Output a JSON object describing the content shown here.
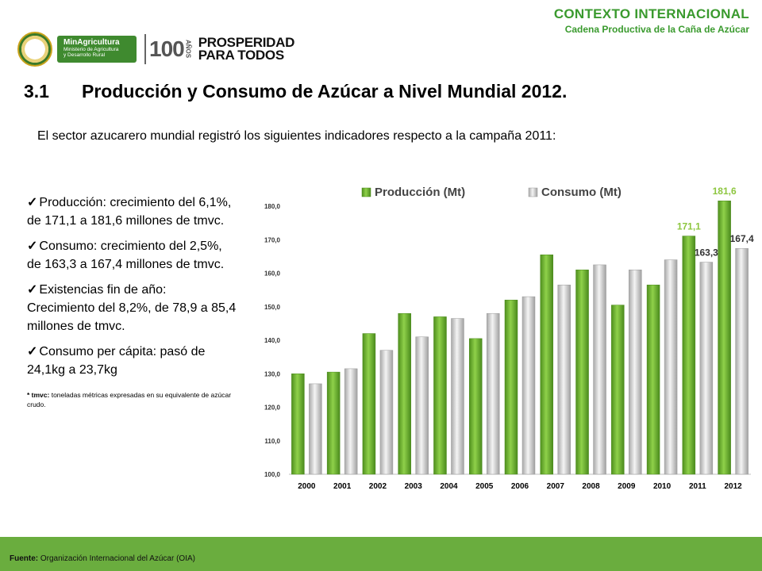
{
  "header": {
    "title": "CONTEXTO INTERNACIONAL",
    "subtitle": "Cadena Productiva de la Caña de Azúcar"
  },
  "logos": {
    "minagri_line1": "MinAgricultura",
    "minagri_line2": "Ministerio de Agricultura",
    "minagri_line3": "y Desarrollo Rural",
    "cien_number": "100",
    "cien_word": "AÑOS",
    "prosperidad_line1": "PROSPERIDAD",
    "prosperidad_line2": "PARA TODOS"
  },
  "section": {
    "number": "3.1",
    "title": "Producción y Consumo de Azúcar a Nivel Mundial 2012."
  },
  "intro": "El sector azucarero mundial registró los siguientes indicadores respecto a la campaña 2011:",
  "bullets": [
    "Producción: crecimiento del 6,1%, de 171,1 a 181,6 millones de tmvc.",
    "Consumo: crecimiento del 2,5%, de 163,3 a 167,4 millones de tmvc.",
    "Existencias fin de año: Crecimiento del 8,2%, de 78,9 a 85,4 millones de tmvc.",
    "Consumo per cápita: pasó de 24,1kg a 23,7kg"
  ],
  "check_glyph": "✓",
  "footnote": {
    "term": "* tmvc:",
    "text": " toneladas métricas expresadas en su equivalente de azúcar crudo."
  },
  "footer": {
    "label": "Fuente:",
    "text": " Organización Internacional del Azúcar (OIA)"
  },
  "colors": {
    "accent_green": "#3a9a2e",
    "footer_green": "#6aad3e",
    "production_bar": "#6fb432",
    "consumption_bar": "#d8d8d8",
    "highlight_label": "#8dc63f"
  },
  "chart_data": {
    "type": "bar",
    "categories": [
      "2000",
      "2001",
      "2002",
      "2003",
      "2004",
      "2005",
      "2006",
      "2007",
      "2008",
      "2009",
      "2010",
      "2011",
      "2012"
    ],
    "series": [
      {
        "name": "Producción (Mt)",
        "values": [
          130.0,
          130.5,
          142.0,
          148.0,
          147.0,
          140.5,
          152.0,
          165.5,
          161.0,
          150.5,
          156.5,
          171.1,
          181.6
        ]
      },
      {
        "name": "Consumo (Mt)",
        "values": [
          127.0,
          131.5,
          137.0,
          141.0,
          146.5,
          148.0,
          153.0,
          156.5,
          162.5,
          161.0,
          164.0,
          163.3,
          167.4
        ]
      }
    ],
    "data_labels": [
      {
        "series": 0,
        "index": 11,
        "text": "171,1"
      },
      {
        "series": 1,
        "index": 11,
        "text": "163,3"
      },
      {
        "series": 0,
        "index": 12,
        "text": "181,6"
      },
      {
        "series": 1,
        "index": 12,
        "text": "167,4"
      }
    ],
    "ylim": [
      100,
      180
    ],
    "yticks": [
      "100,0",
      "110,0",
      "120,0",
      "130,0",
      "140,0",
      "150,0",
      "160,0",
      "170,0",
      "180,0"
    ],
    "xlabel": "",
    "ylabel": "",
    "grid": false,
    "legend_position": "top"
  }
}
